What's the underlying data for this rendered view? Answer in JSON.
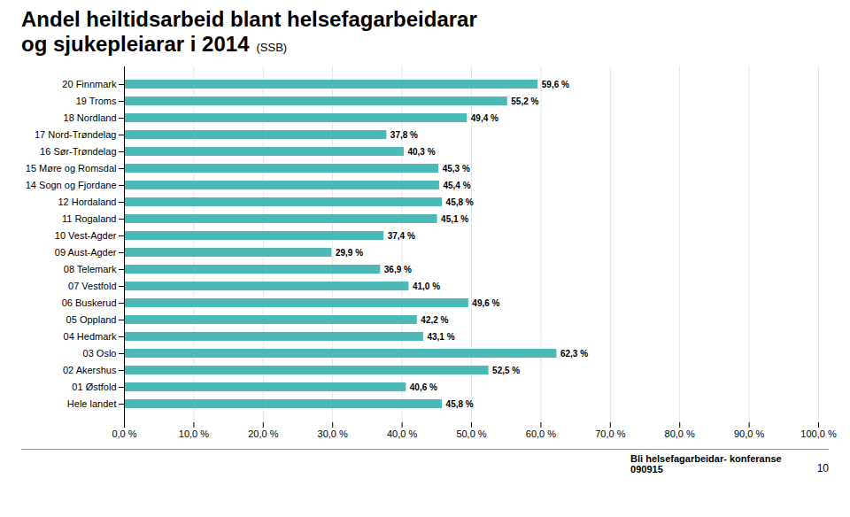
{
  "chart_data": {
    "type": "bar",
    "orientation": "horizontal",
    "title": "Andel heiltidsarbeid blant helsefagarbeidarar\nog sjukepleiarar i 2014",
    "annotations": [
      "(SSB)",
      "Bli helsefagarbeidar- konferanse\n090915",
      "10"
    ],
    "categories": [
      "20 Finnmark",
      "19 Troms",
      "18 Nordland",
      "17 Nord-Trøndelag",
      "16 Sør-Trøndelag",
      "15 Møre og Romsdal",
      "14 Sogn og Fjordane",
      "12 Hordaland",
      "11 Rogaland",
      "10 Vest-Agder",
      "09 Aust-Agder",
      "08 Telemark",
      "07 Vestfold",
      "06 Buskerud",
      "05 Oppland",
      "04 Hedmark",
      "03 Oslo",
      "02 Akershus",
      "01 Østfold",
      "Hele landet"
    ],
    "values": [
      59.6,
      55.2,
      49.4,
      37.8,
      40.3,
      45.3,
      45.4,
      45.8,
      45.1,
      37.4,
      29.9,
      36.9,
      41.0,
      49.6,
      42.2,
      43.1,
      62.3,
      52.5,
      40.6,
      45.8
    ],
    "value_labels": [
      "59,6 %",
      "55,2 %",
      "49,4 %",
      "37,8 %",
      "40,3 %",
      "45,3 %",
      "45,4 %",
      "45,8 %",
      "45,1 %",
      "37,4 %",
      "29,9 %",
      "36,9 %",
      "41,0 %",
      "49,6 %",
      "42,2 %",
      "43,1 %",
      "62,3 %",
      "52,5 %",
      "40,6 %",
      "45,8 %"
    ],
    "color": "#4DB8B8",
    "xlim": [
      0,
      100
    ],
    "xticks": [
      {
        "value": 0,
        "label": "0,0 %"
      },
      {
        "value": 10,
        "label": "10,0 %"
      },
      {
        "value": 20,
        "label": "20,0 %"
      },
      {
        "value": 30,
        "label": "30,0 %"
      },
      {
        "value": 40,
        "label": "40,0 %"
      },
      {
        "value": 50,
        "label": "50,0 %"
      },
      {
        "value": 60,
        "label": "60,0 %"
      },
      {
        "value": 70,
        "label": "70,0 %"
      },
      {
        "value": 80,
        "label": "80,0 %"
      },
      {
        "value": 90,
        "label": "90,0 %"
      },
      {
        "value": 100,
        "label": "100,0 %"
      }
    ],
    "grid": true,
    "data_labels": true
  }
}
